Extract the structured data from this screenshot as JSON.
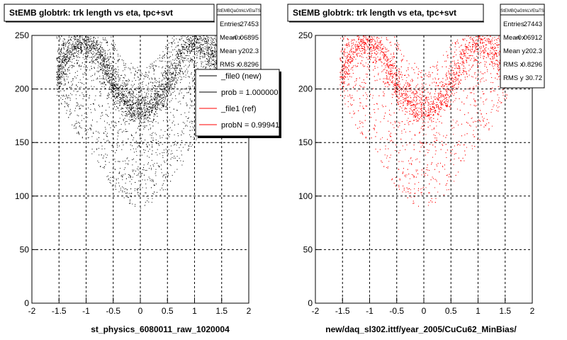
{
  "footer_text": "",
  "chart_data": [
    {
      "type": "scatter",
      "id": "left",
      "title": "StEMB globtrk: trk length vs eta, tpc+svt",
      "xlabel": "st_physics_6080011_raw_1020004",
      "ylabel": "",
      "xlim": [
        -2,
        2
      ],
      "ylim": [
        0,
        250
      ],
      "x_ticks": [
        "-2",
        "-1.5",
        "-1",
        "-0.5",
        "0",
        "0.5",
        "1",
        "1.5",
        "2"
      ],
      "y_ticks": [
        "0",
        "50",
        "100",
        "150",
        "200",
        "250"
      ],
      "grid": true,
      "marker_color": "#000000",
      "stats": {
        "name": "StEMBQaGtrkLVEtaTS",
        "rows": [
          {
            "label": "Entries",
            "value": "27453"
          },
          {
            "label": "Mean x",
            "value": "-0.06895"
          },
          {
            "label": "Mean y",
            "value": "202.3"
          },
          {
            "label": "RMS x",
            "value": "0.8296"
          }
        ]
      },
      "legend": {
        "placement": "top-right",
        "entries": [
          {
            "label": "_file0 (new)",
            "color": "#000000"
          },
          {
            "label": "prob = 1.000000",
            "color": "#000000"
          },
          {
            "label": "_file1 (ref)",
            "color": "#ff0000"
          },
          {
            "label": "probN = 0.99941",
            "color": "#ff0000"
          }
        ]
      },
      "density": {
        "x_bins": [
          -1.6,
          -1.4,
          -1.2,
          -1.0,
          -0.8,
          -0.6,
          -0.4,
          -0.2,
          0.0,
          0.2,
          0.4,
          0.6,
          0.8,
          1.0,
          1.2,
          1.4,
          1.6
        ],
        "band_y": [
          215,
          230,
          240,
          245,
          235,
          215,
          195,
          185,
          180,
          185,
          195,
          215,
          235,
          245,
          240,
          230,
          215
        ],
        "floor_y": [
          200,
          180,
          160,
          150,
          130,
          115,
          100,
          92,
          88,
          92,
          100,
          115,
          130,
          150,
          160,
          180,
          200
        ]
      }
    },
    {
      "type": "scatter",
      "id": "right",
      "title": "StEMB globtrk: trk length vs eta, tpc+svt",
      "xlabel": "new/daq_sl302.ittf/year_2005/CuCu62_MinBias/",
      "ylabel": "",
      "xlim": [
        -2,
        2
      ],
      "ylim": [
        0,
        250
      ],
      "x_ticks": [
        "-2",
        "-1.5",
        "-1",
        "-0.5",
        "0",
        "0.5",
        "1",
        "1.5",
        "2"
      ],
      "y_ticks": [
        "0",
        "50",
        "100",
        "150",
        "200",
        "250"
      ],
      "grid": true,
      "marker_color": "#ff0000",
      "stats": {
        "name": "StEMBQaGtrkLVEtaTS",
        "rows": [
          {
            "label": "Entries",
            "value": "27443"
          },
          {
            "label": "Mean x",
            "value": "-0.06912"
          },
          {
            "label": "Mean y",
            "value": "202.3"
          },
          {
            "label": "RMS x",
            "value": "0.8296"
          },
          {
            "label": "RMS y",
            "value": "30.72"
          }
        ]
      },
      "density": {
        "x_bins": [
          -1.6,
          -1.4,
          -1.2,
          -1.0,
          -0.8,
          -0.6,
          -0.4,
          -0.2,
          0.0,
          0.2,
          0.4,
          0.6,
          0.8,
          1.0,
          1.2,
          1.4,
          1.6
        ],
        "band_y": [
          215,
          230,
          240,
          245,
          235,
          215,
          195,
          185,
          180,
          185,
          195,
          215,
          235,
          245,
          240,
          230,
          215
        ],
        "floor_y": [
          200,
          180,
          160,
          150,
          130,
          115,
          100,
          92,
          88,
          92,
          100,
          115,
          130,
          150,
          160,
          180,
          200
        ]
      }
    }
  ]
}
